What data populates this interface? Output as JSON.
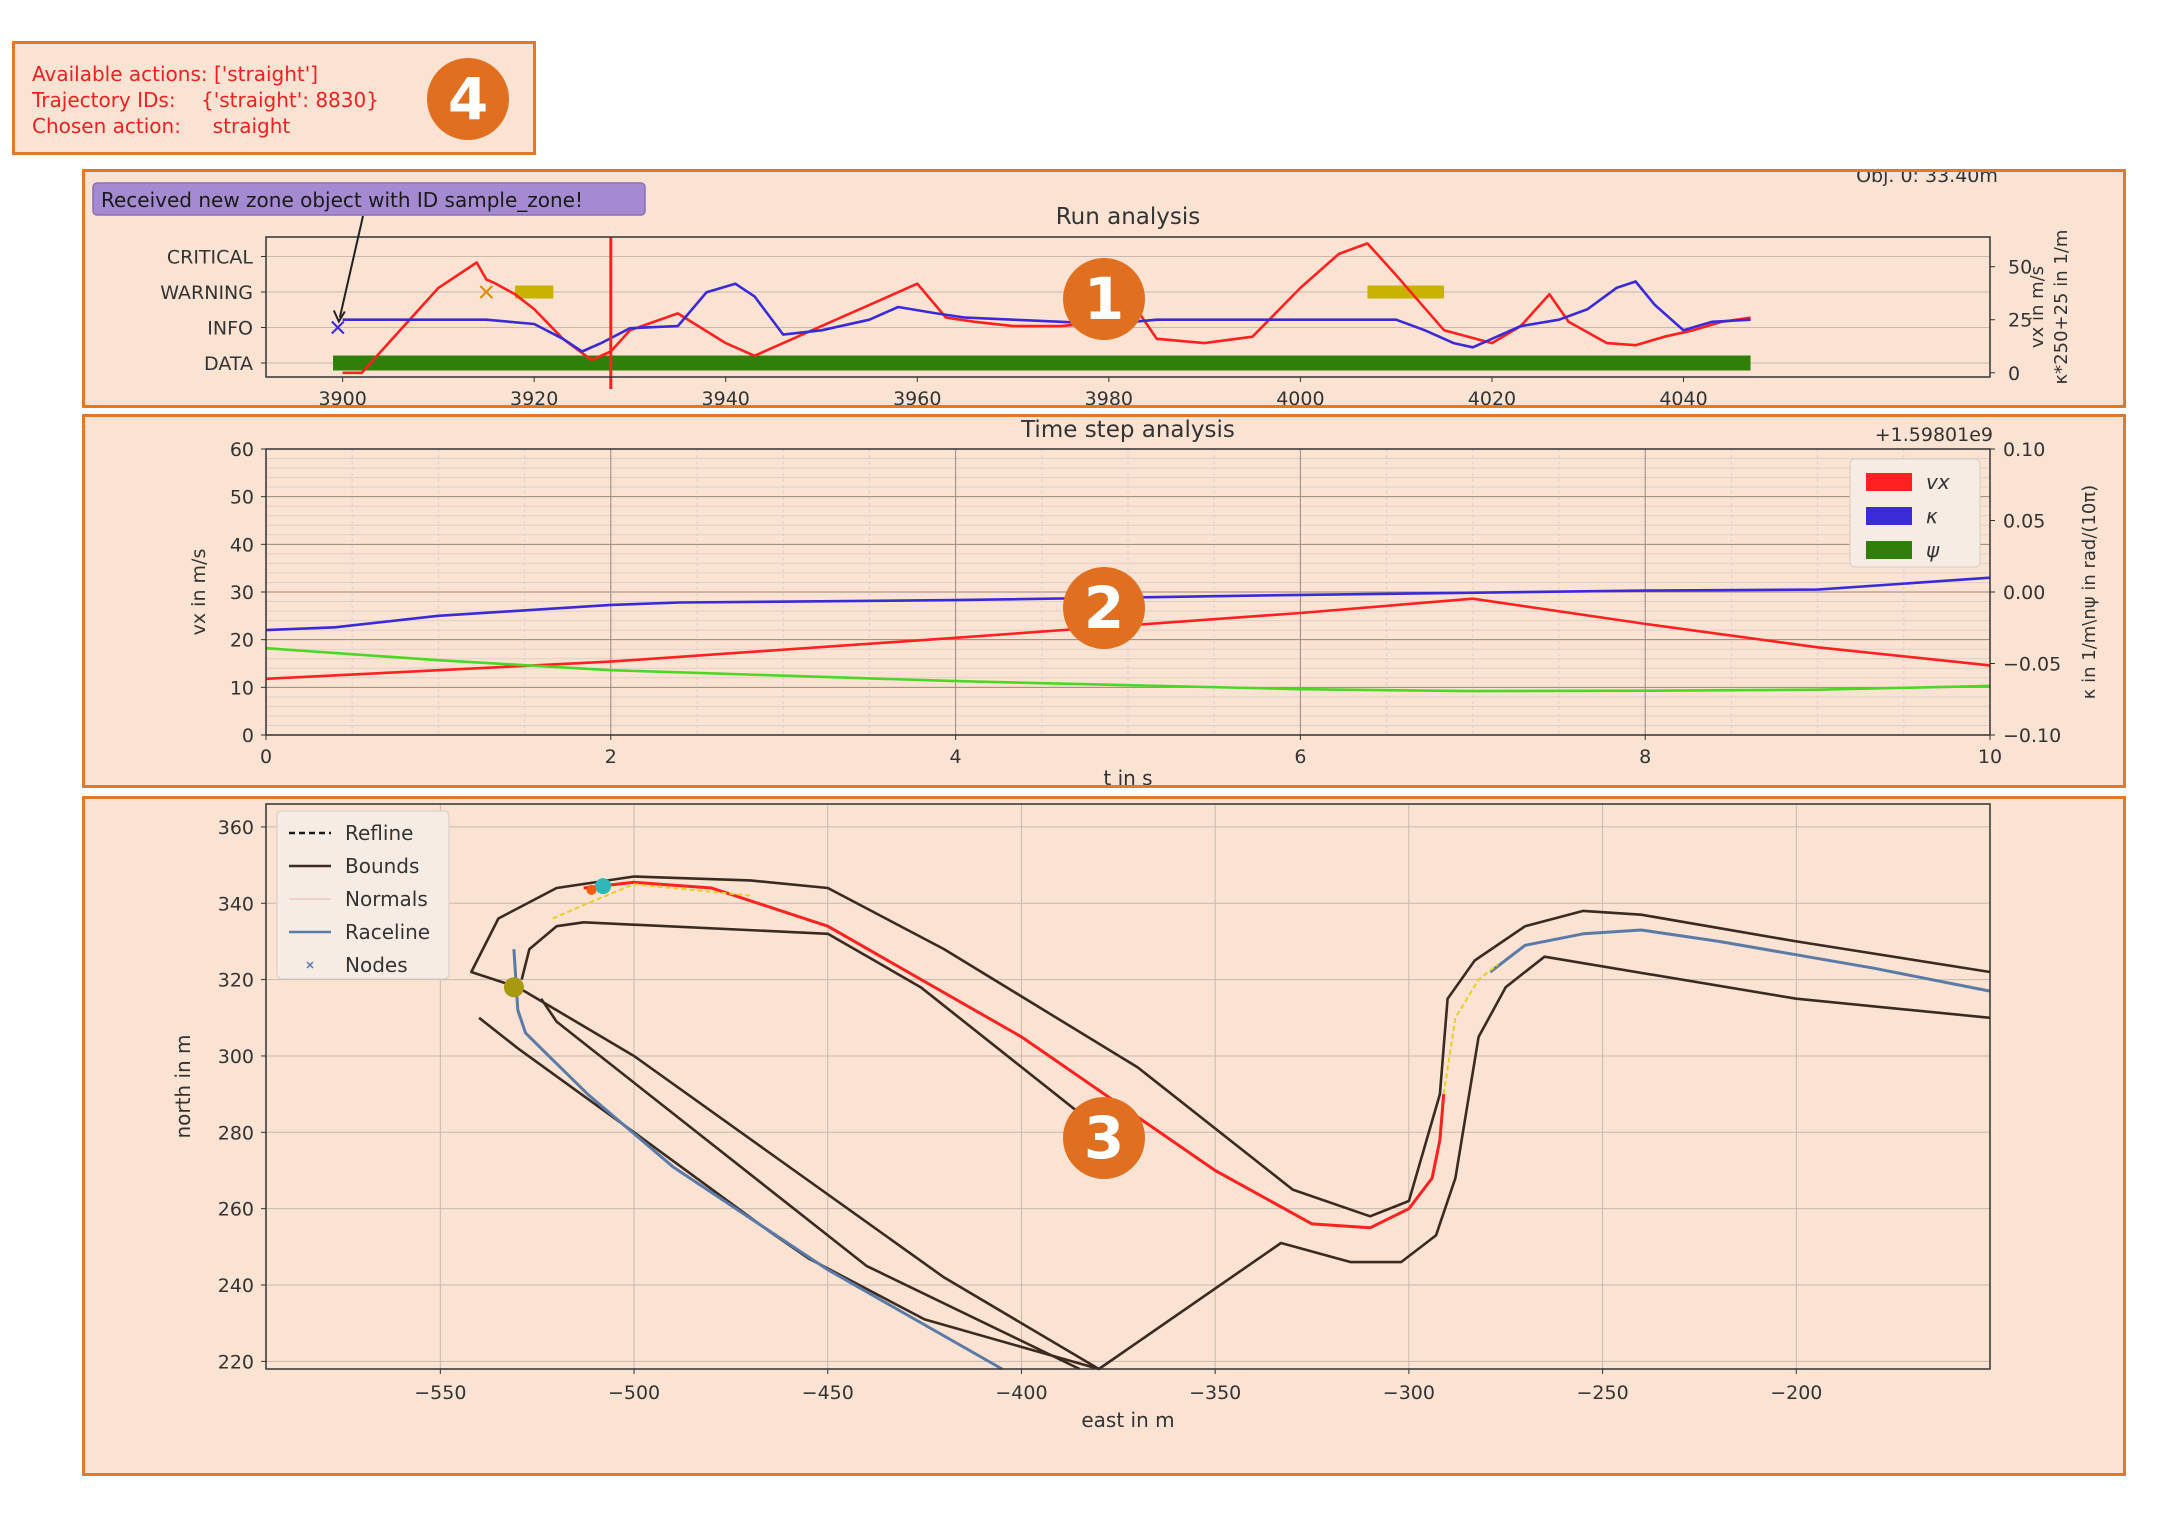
{
  "info_box": {
    "lines": [
      "Available actions: ['straight']",
      "Trajectory IDs:    {'straight': 8830}",
      "Chosen action:     straight"
    ],
    "badge": "4"
  },
  "run_panel": {
    "badge": "1"
  },
  "ts_panel": {
    "badge": "2"
  },
  "map_panel": {
    "badge": "3"
  },
  "colors": {
    "panel_bg": "#fae3d2",
    "panel_border": "#e07a2a",
    "badge": "#e07020",
    "red": "#ff2020",
    "blue": "#3a2ad8",
    "green": "#2f7f0a",
    "lime": "#4ad824",
    "olive": "#c8b400",
    "track": "#3a2a20",
    "raceline": "#5a7aa8"
  },
  "chart_data": [
    {
      "type": "line",
      "title": "Run analysis",
      "annotation": "Received new zone object with ID sample_zone!",
      "corner_text": "Obj. 0: 33.40m",
      "y_categories": [
        "DATA",
        "INFO",
        "WARNING",
        "CRITICAL"
      ],
      "x_ticks": [
        3900,
        3920,
        3940,
        3960,
        3980,
        4000,
        4020,
        4040
      ],
      "xlim": [
        3892,
        4072
      ],
      "right_ylabel": "vx in m/s\nκ*250+25 in 1/m",
      "right_ticks": [
        0,
        25,
        50
      ],
      "right_ylim": [
        -2,
        64
      ],
      "series": [
        {
          "name": "vx",
          "color": "#ff2020",
          "x": [
            3900,
            3902,
            3905,
            3910,
            3914,
            3915,
            3916,
            3918,
            3920,
            3923,
            3926,
            3928,
            3930,
            3935,
            3940,
            3943,
            3946,
            3950,
            3955,
            3960,
            3963,
            3966,
            3970,
            3975,
            3980,
            3982,
            3985,
            3990,
            3995,
            4000,
            4004,
            4007,
            4010,
            4015,
            4020,
            4023,
            4026,
            4028,
            4032,
            4035,
            4038,
            4041,
            4044,
            4047
          ],
          "y": [
            0,
            0,
            15,
            40,
            52,
            44,
            42,
            37,
            30,
            16,
            6,
            10,
            20,
            28,
            14,
            8,
            14,
            22,
            32,
            42,
            26,
            24,
            22,
            22,
            24,
            36,
            16,
            14,
            17,
            40,
            56,
            61,
            46,
            20,
            14,
            22,
            37,
            24,
            14,
            13,
            17,
            20,
            24,
            26
          ]
        },
        {
          "name": "κ",
          "color": "#3a2ad8",
          "x": [
            3900,
            3910,
            3915,
            3920,
            3923,
            3925,
            3927,
            3930,
            3935,
            3938,
            3941,
            3943,
            3946,
            3950,
            3955,
            3958,
            3962,
            3965,
            3970,
            3975,
            3980,
            3985,
            3990,
            4000,
            4007,
            4010,
            4013,
            4016,
            4018,
            4020,
            4023,
            4027,
            4030,
            4033,
            4035,
            4037,
            4040,
            4043,
            4047
          ],
          "y": [
            25,
            25,
            25,
            23,
            16,
            10,
            14,
            21,
            22,
            38,
            42,
            36,
            18,
            20,
            25,
            31,
            28,
            26,
            25,
            24,
            23,
            25,
            25,
            25,
            25,
            25,
            20,
            14,
            12,
            16,
            22,
            25,
            30,
            40,
            43,
            32,
            20,
            24,
            25
          ]
        }
      ],
      "bars": [
        {
          "category": "DATA",
          "color": "#2f7f0a",
          "x0": 3899,
          "x1": 4047
        },
        {
          "category": "WARNING",
          "color": "#c8b400",
          "x0": 3918,
          "x1": 3922
        },
        {
          "category": "WARNING",
          "color": "#c8b400",
          "x0": 4007,
          "x1": 4015
        }
      ],
      "markers": [
        {
          "category": "INFO",
          "x": 3899.5,
          "symbol": "x",
          "color": "#3a2ad8"
        },
        {
          "category": "WARNING",
          "x": 3915,
          "symbol": "x",
          "color": "#e08a00"
        }
      ],
      "vline_x": 3928
    },
    {
      "type": "line",
      "title": "Time step analysis",
      "xlabel": "t in s",
      "ylabel": "vx in m/s",
      "right_ylabel": "κ in 1/m\\nψ in rad/(10π)",
      "offset_text": "+1.59801e9",
      "xlim": [
        0,
        10
      ],
      "ylim": [
        0,
        60
      ],
      "right_ylim": [
        -0.1,
        0.1
      ],
      "x_ticks": [
        0,
        2,
        4,
        6,
        8,
        10
      ],
      "y_ticks": [
        0,
        10,
        20,
        30,
        40,
        50,
        60
      ],
      "right_ticks": [
        "−0.10",
        "−0.05",
        "0.00",
        "0.05",
        "0.10"
      ],
      "right_tick_values": [
        -0.1,
        -0.05,
        0,
        0.05,
        0.1
      ],
      "legend": [
        "vx",
        "κ",
        "ψ"
      ],
      "legend_colors": [
        "#ff2020",
        "#3a2ad8",
        "#2f7f0a"
      ],
      "legend_position": "top-right",
      "series": [
        {
          "name": "vx",
          "axis": "left",
          "color": "#ff2020",
          "x": [
            0,
            2,
            4,
            6,
            7,
            8,
            9,
            10
          ],
          "y": [
            11.8,
            15.4,
            20.4,
            25.6,
            28.6,
            23.3,
            18.4,
            14.6
          ]
        },
        {
          "name": "κ",
          "axis": "left",
          "color": "#3a2ad8",
          "x": [
            0,
            0.4,
            1,
            2,
            2.4,
            4,
            6,
            8,
            9,
            10
          ],
          "y": [
            22,
            22.6,
            25,
            27.3,
            27.8,
            28.3,
            29.4,
            30.3,
            30.5,
            33
          ]
        },
        {
          "name": "ψ",
          "axis": "left",
          "color": "#4ad824",
          "x": [
            0,
            1,
            2,
            4,
            6,
            7,
            8,
            9,
            10
          ],
          "y": [
            18.2,
            15.7,
            13.6,
            11.3,
            9.6,
            9.2,
            9.3,
            9.5,
            10.3
          ]
        }
      ]
    },
    {
      "type": "line",
      "xlabel": "east in m",
      "ylabel": "north in m",
      "xlim": [
        -595,
        -150
      ],
      "ylim": [
        218,
        366
      ],
      "x_ticks": [
        -550,
        -500,
        -450,
        -400,
        -350,
        -300,
        -250,
        -200
      ],
      "y_ticks": [
        220,
        240,
        260,
        280,
        300,
        320,
        340,
        360
      ],
      "grid": true,
      "legend": [
        "Refline",
        "Bounds",
        "Normals",
        "Raceline",
        "Nodes"
      ],
      "legend_position": "top-left",
      "series": [
        {
          "name": "Bounds",
          "color": "#3a2a20",
          "x": [
            -380,
            -420,
            -500,
            -530,
            -542,
            -535,
            -520,
            -500,
            -470,
            -450,
            -420,
            -370,
            -330,
            -310,
            -300,
            -292,
            -290,
            -283,
            -270,
            -255,
            -240,
            -200,
            -150
          ],
          "y": [
            218,
            242,
            300,
            318,
            322,
            336,
            344,
            347,
            346,
            344,
            328,
            297,
            265,
            258,
            262,
            290,
            315,
            325,
            334,
            338,
            337,
            330,
            322
          ]
        },
        {
          "name": "Bounds",
          "color": "#3a2a20",
          "x": [
            -540,
            -530,
            -500,
            -465,
            -455,
            -425,
            -380,
            -333,
            -315,
            -302,
            -293,
            -288,
            -282,
            -275,
            -265,
            -200,
            -150
          ],
          "y": [
            310,
            302,
            280,
            254,
            247,
            231,
            218,
            251,
            246,
            246,
            253,
            268,
            305,
            318,
            326,
            315,
            310
          ]
        },
        {
          "name": "Bounds",
          "color": "#3a2a20",
          "x": [
            -529,
            -527,
            -520,
            -513,
            -450,
            -426,
            -385
          ],
          "y": [
            320,
            328,
            334,
            335,
            332,
            318,
            285
          ]
        },
        {
          "name": "Bounds",
          "color": "#3a2a20",
          "x": [
            -524,
            -520,
            -515,
            -440,
            -385
          ],
          "y": [
            315,
            309,
            305,
            245,
            218
          ]
        },
        {
          "name": "Raceline",
          "color": "#5a7aa8",
          "x": [
            -531,
            -530,
            -528,
            -521,
            -512,
            -490,
            -450,
            -405
          ],
          "y": [
            328,
            312,
            306,
            299,
            290,
            271,
            244,
            218
          ]
        },
        {
          "name": "Raceline",
          "color": "#5a7aa8",
          "x": [
            -279,
            -270,
            -255,
            -240,
            -220,
            -180,
            -150
          ],
          "y": [
            322,
            329,
            332,
            333,
            330,
            323,
            317
          ]
        },
        {
          "name": "trajectory",
          "color": "#ff2020",
          "x": [
            -513,
            -500,
            -480,
            -450,
            -400,
            -350,
            -325,
            -310,
            -300,
            -294,
            -292,
            -291
          ],
          "y": [
            344,
            345.5,
            344,
            334,
            305,
            270,
            256,
            255,
            260,
            268,
            278,
            290
          ]
        }
      ]
    }
  ]
}
